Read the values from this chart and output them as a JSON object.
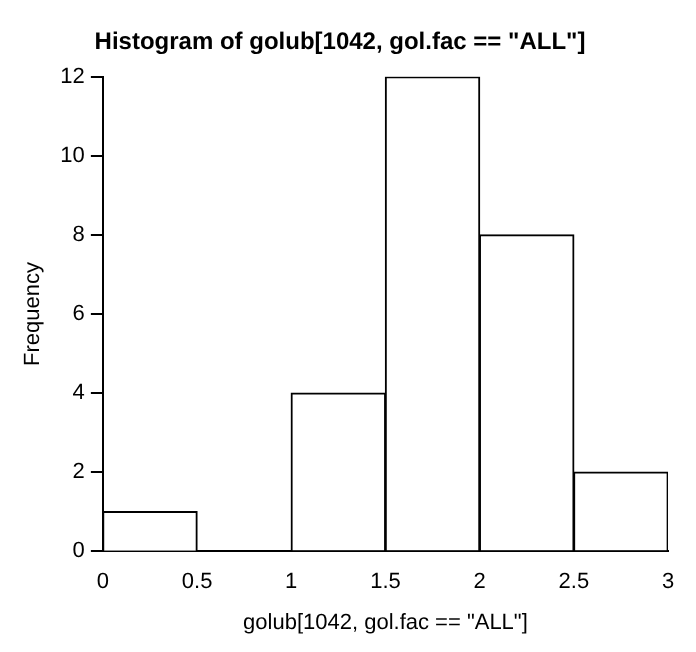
{
  "chart_data": {
    "type": "histogram",
    "title": "Histogram of golub[1042, gol.fac == \"ALL\"]",
    "xlabel": "golub[1042, gol.fac == \"ALL\"]",
    "ylabel": "Frequency",
    "bins": [
      0,
      0.5,
      1,
      1.5,
      2,
      2.5,
      3
    ],
    "values": [
      1,
      0,
      4,
      12,
      8,
      2
    ],
    "color": "#ffffff",
    "xlim": [
      0,
      3
    ],
    "xticks": [
      0,
      0.5,
      1,
      1.5,
      2,
      2.5,
      3
    ],
    "ylim": [
      0,
      12
    ],
    "yticks": [
      0,
      2,
      4,
      6,
      8,
      10,
      12
    ],
    "grid": false
  }
}
